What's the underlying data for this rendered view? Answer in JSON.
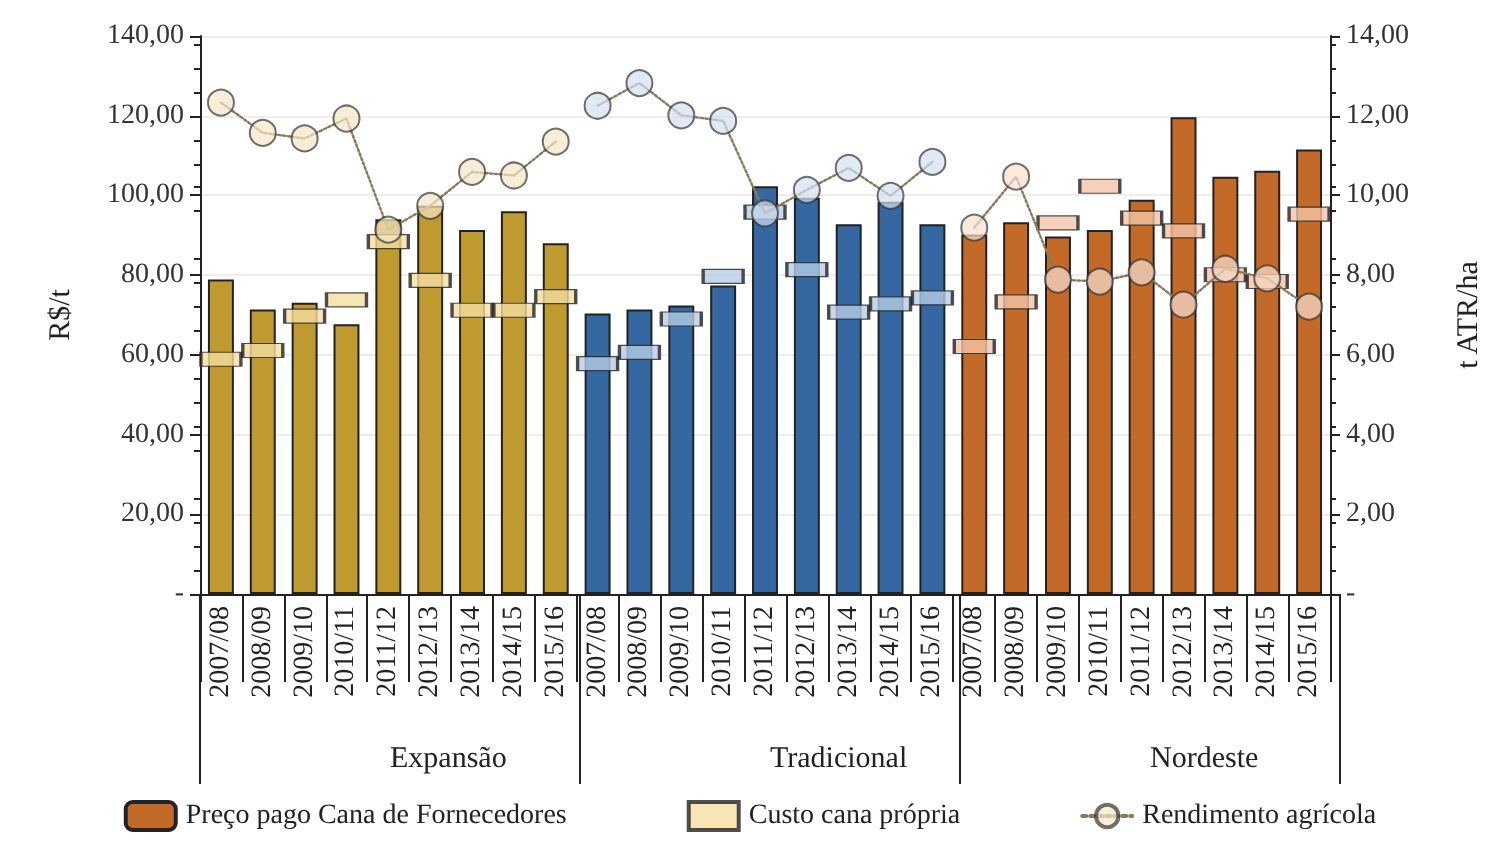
{
  "chart_data": {
    "type": "bar",
    "ylabel": "R$/t",
    "y2label": "t ATR/ha",
    "categories": [
      "2007/08",
      "2008/09",
      "2009/10",
      "2010/11",
      "2011/12",
      "2012/13",
      "2013/14",
      "2014/15",
      "2015/16",
      "2007/08",
      "2008/09",
      "2009/10",
      "2010/11",
      "2011/12",
      "2012/13",
      "2013/14",
      "2014/15",
      "2015/16",
      "2007/08",
      "2008/09",
      "2009/10",
      "2010/11",
      "2011/12",
      "2012/13",
      "2013/14",
      "2014/15",
      "2015/16"
    ],
    "series": [
      {
        "name": "Preço pago Cana de Fornecedores",
        "color": "#c46a28",
        "colors": [
          "#bf9a2e",
          "#bf9a2e",
          "#bf9a2e",
          "#bf9a2e",
          "#bf9a2e",
          "#bf9a2e",
          "#bf9a2e",
          "#bf9a2e",
          "#bf9a2e",
          "#3568a0",
          "#3568a0",
          "#3568a0",
          "#3568a0",
          "#3568a0",
          "#3568a0",
          "#3568a0",
          "#3568a0",
          "#3568a0",
          "#c46a28",
          "#c46a28",
          "#c46a28",
          "#c46a28",
          "#c46a28",
          "#c46a28",
          "#c46a28",
          "#c46a28",
          "#c46a28"
        ],
        "values": [
          78.9,
          71.4,
          73.1,
          67.7,
          94.0,
          97.4,
          91.3,
          96.0,
          88.0,
          70.4,
          71.4,
          72.4,
          77.4,
          102.3,
          99.4,
          92.8,
          98.4,
          92.8,
          90.2,
          93.3,
          89.7,
          91.3,
          98.9,
          119.6,
          104.7,
          106.2,
          111.5
        ]
      },
      {
        "type": "scatter",
        "name": "Custo cana própria",
        "marker": "square",
        "colors": [
          "#f5dfa0",
          "#f5dfa0",
          "#f5dfa0",
          "#f5dfa0",
          "#f5dfa0",
          "#f5dfa0",
          "#f5dfa0",
          "#f5dfa0",
          "#f5dfa0",
          "#b8cde6",
          "#b8cde6",
          "#b8cde6",
          "#b8cde6",
          "#b8cde6",
          "#b8cde6",
          "#b8cde6",
          "#b8cde6",
          "#b8cde6",
          "#f5c4a8",
          "#f5c4a8",
          "#f5c4a8",
          "#f5c4a8",
          "#f5c4a8",
          "#f5c4a8",
          "#f5c4a8",
          "#f5c4a8",
          "#f5c4a8"
        ],
        "values": [
          58.9,
          61.1,
          69.7,
          73.8,
          88.4,
          78.7,
          71.2,
          71.2,
          74.6,
          57.8,
          60.6,
          69.0,
          79.7,
          95.8,
          81.4,
          70.7,
          72.8,
          74.3,
          62.1,
          73.3,
          93.1,
          102.3,
          94.3,
          91.1,
          80.1,
          78.4,
          95.3
        ]
      },
      {
        "type": "line",
        "name": "Rendimento agrícola",
        "axis": "y2",
        "marker": "circle",
        "line_style": "dotted",
        "color": "#f5e6c4",
        "values": [
          12.33,
          11.57,
          11.43,
          11.93,
          9.14,
          9.74,
          10.59,
          10.5,
          11.35,
          null,
          null,
          null,
          null,
          null,
          null,
          null,
          null,
          null,
          null,
          null,
          null,
          null,
          null,
          null,
          null,
          null,
          null
        ]
      },
      {
        "type": "line",
        "axis": "y2",
        "marker": "circle",
        "line_style": "dotted",
        "color": "#d3e0ef",
        "values": [
          null,
          null,
          null,
          null,
          null,
          null,
          null,
          null,
          null,
          12.25,
          12.82,
          12.01,
          11.87,
          9.55,
          10.14,
          10.69,
          9.99,
          10.84,
          null,
          null,
          null,
          null,
          null,
          null,
          null,
          null,
          null
        ]
      },
      {
        "type": "line",
        "axis": "y2",
        "marker": "circle",
        "line_style": "dotted",
        "color": "#fae0cf",
        "values": [
          null,
          null,
          null,
          null,
          null,
          null,
          null,
          null,
          null,
          null,
          null,
          null,
          null,
          null,
          null,
          null,
          null,
          null,
          9.19,
          10.47,
          7.89,
          7.84,
          8.07,
          7.26,
          8.16,
          7.92,
          7.21
        ]
      }
    ],
    "ylim": [
      0,
      140
    ],
    "yticks": [
      {
        "value": 0,
        "label": "-"
      },
      {
        "value": 20,
        "label": "20,00"
      },
      {
        "value": 40,
        "label": "40,00"
      },
      {
        "value": 60,
        "label": "60,00"
      },
      {
        "value": 80,
        "label": "80,00"
      },
      {
        "value": 100,
        "label": "100,00"
      },
      {
        "value": 120,
        "label": "120,00"
      },
      {
        "value": 140,
        "label": "140,00"
      }
    ],
    "y2lim": [
      0,
      14
    ],
    "y2ticks": [
      {
        "value": 0,
        "label": "-"
      },
      {
        "value": 2,
        "label": "2,00"
      },
      {
        "value": 4,
        "label": "4,00"
      },
      {
        "value": 6,
        "label": "6,00"
      },
      {
        "value": 8,
        "label": "8,00"
      },
      {
        "value": 10,
        "label": "10,00"
      },
      {
        "value": 12,
        "label": "12,00"
      },
      {
        "value": 14,
        "label": "14,00"
      }
    ],
    "annotations": [
      "Expansão",
      "Tradicional",
      "Nordeste"
    ],
    "grid": "y",
    "legend": "bottom"
  }
}
